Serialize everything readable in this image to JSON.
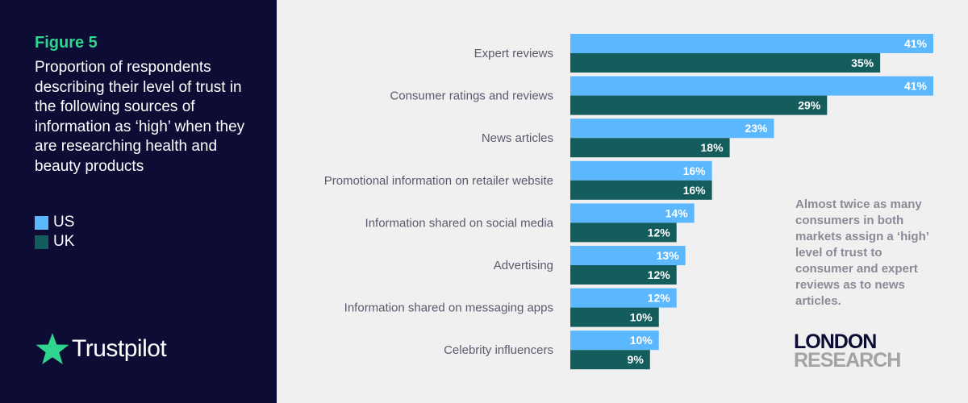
{
  "sidebar": {
    "figure_label": "Figure 5",
    "title": "Proportion of respondents describing their level of trust in the following sources of information as ‘high’ when they are researching health and beauty products",
    "legend": [
      {
        "label": "US",
        "color": "#5bb8ff"
      },
      {
        "label": "UK",
        "color": "#155c5c"
      }
    ],
    "brand": {
      "name": "Trustpilot",
      "icon": "star-icon",
      "icon_color": "#2fd48f"
    }
  },
  "note": "Almost twice as many consumers in both markets assign a ‘high’ level of trust to consumer and expert reviews as to news articles.",
  "logo": {
    "line1": "LONDON",
    "line2": "RESEARCH"
  },
  "colors": {
    "sidebar_bg": "#0c0c34",
    "chart_bg": "#f0f0f0",
    "us": "#5bb8ff",
    "uk": "#155c5c",
    "label_text": "#5a5a6e"
  },
  "chart_data": {
    "type": "bar",
    "orientation": "horizontal",
    "categories": [
      "Expert reviews",
      "Consumer ratings and reviews",
      "News articles",
      "Promotional information on retailer website",
      "Information shared on social media",
      "Advertising",
      "Information shared on messaging apps",
      "Celebrity influencers"
    ],
    "series": [
      {
        "name": "US",
        "values": [
          41,
          41,
          23,
          16,
          14,
          13,
          12,
          10
        ],
        "labels": [
          "41%",
          "41%",
          "23%",
          "16%",
          "14%",
          "13%",
          "12%",
          "10%"
        ]
      },
      {
        "name": "UK",
        "values": [
          35,
          29,
          18,
          16,
          12,
          12,
          10,
          9
        ],
        "labels": [
          "35%",
          "29%",
          "18%",
          "16%",
          "12%",
          "12%",
          "10%",
          "9%"
        ]
      }
    ],
    "unit": "%",
    "xlim": [
      0,
      41
    ],
    "grid": false,
    "legend_position": "left-sidebar"
  }
}
